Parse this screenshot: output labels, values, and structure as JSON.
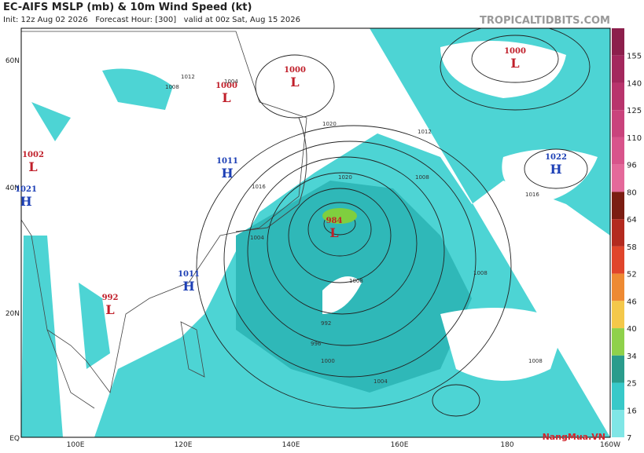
{
  "header": {
    "title": "EC-AIFS MSLP (mb) & 10m Wind Speed (kt)",
    "subtitle": "Init: 12z Aug 02 2026   Forecast Hour: [300]   valid at 00z Sat, Aug 15 2026",
    "brand": "TROPICALTIDBITS.COM"
  },
  "map": {
    "lat_labels": [
      "60N",
      "40N",
      "20N",
      "EQ"
    ],
    "lon_labels": [
      "100E",
      "120E",
      "140E",
      "160E",
      "180",
      "160W"
    ],
    "centers": [
      {
        "letter": "L",
        "pressure": "1000"
      },
      {
        "letter": "L",
        "pressure": "1000"
      },
      {
        "letter": "L",
        "pressure": "1000"
      },
      {
        "letter": "L",
        "pressure": "1002"
      },
      {
        "letter": "H",
        "pressure": "1021"
      },
      {
        "letter": "H",
        "pressure": "1011"
      },
      {
        "letter": "L",
        "pressure": "984"
      },
      {
        "letter": "H",
        "pressure": "1011"
      },
      {
        "letter": "L",
        "pressure": "992"
      },
      {
        "letter": "H",
        "pressure": "1022"
      }
    ],
    "isobar_labels": [
      "1004",
      "1008",
      "1012",
      "1016",
      "1020",
      "1004",
      "1008",
      "992",
      "996",
      "1000",
      "1004",
      "1008",
      "1012",
      "1016",
      "1020",
      "1008",
      "1008"
    ]
  },
  "colorbar": {
    "labels": [
      155,
      140,
      125,
      110,
      96,
      80,
      64,
      58,
      52,
      46,
      40,
      34,
      25,
      16,
      7
    ],
    "colors": [
      "#8c1f4c",
      "#a3285d",
      "#b8346c",
      "#c9437c",
      "#d8548b",
      "#e4699a",
      "#7b1d12",
      "#b32a1f",
      "#e0452b",
      "#ee8a33",
      "#f4c84a",
      "#8fd14b",
      "#2a9c8c",
      "#38c9c9",
      "#80e6e6"
    ]
  },
  "watermark": "NangMua.VN"
}
